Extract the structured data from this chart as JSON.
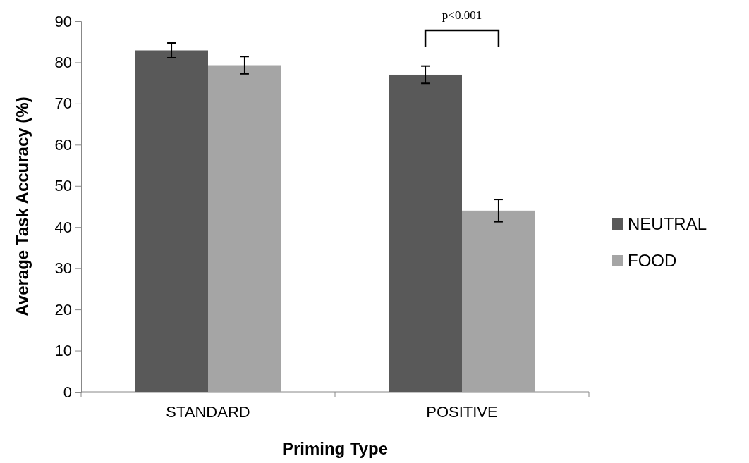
{
  "chart_data": {
    "type": "bar",
    "xlabel": "Priming Type",
    "ylabel": "Average Task Accuracy (%)",
    "categories": [
      "STANDARD",
      "POSITIVE"
    ],
    "series": [
      {
        "name": "NEUTRAL",
        "color": "#595959",
        "values": [
          82.9,
          77.0
        ],
        "errors": [
          1.8,
          2.1
        ]
      },
      {
        "name": "FOOD",
        "color": "#a5a5a5",
        "values": [
          79.3,
          44.0
        ],
        "errors": [
          2.1,
          2.7
        ]
      }
    ],
    "ylim": [
      0,
      90
    ],
    "yticks": [
      0,
      10,
      20,
      30,
      40,
      50,
      60,
      70,
      80,
      90
    ],
    "grid": false,
    "legend": "right",
    "annotations": [
      "p<0.001"
    ]
  }
}
